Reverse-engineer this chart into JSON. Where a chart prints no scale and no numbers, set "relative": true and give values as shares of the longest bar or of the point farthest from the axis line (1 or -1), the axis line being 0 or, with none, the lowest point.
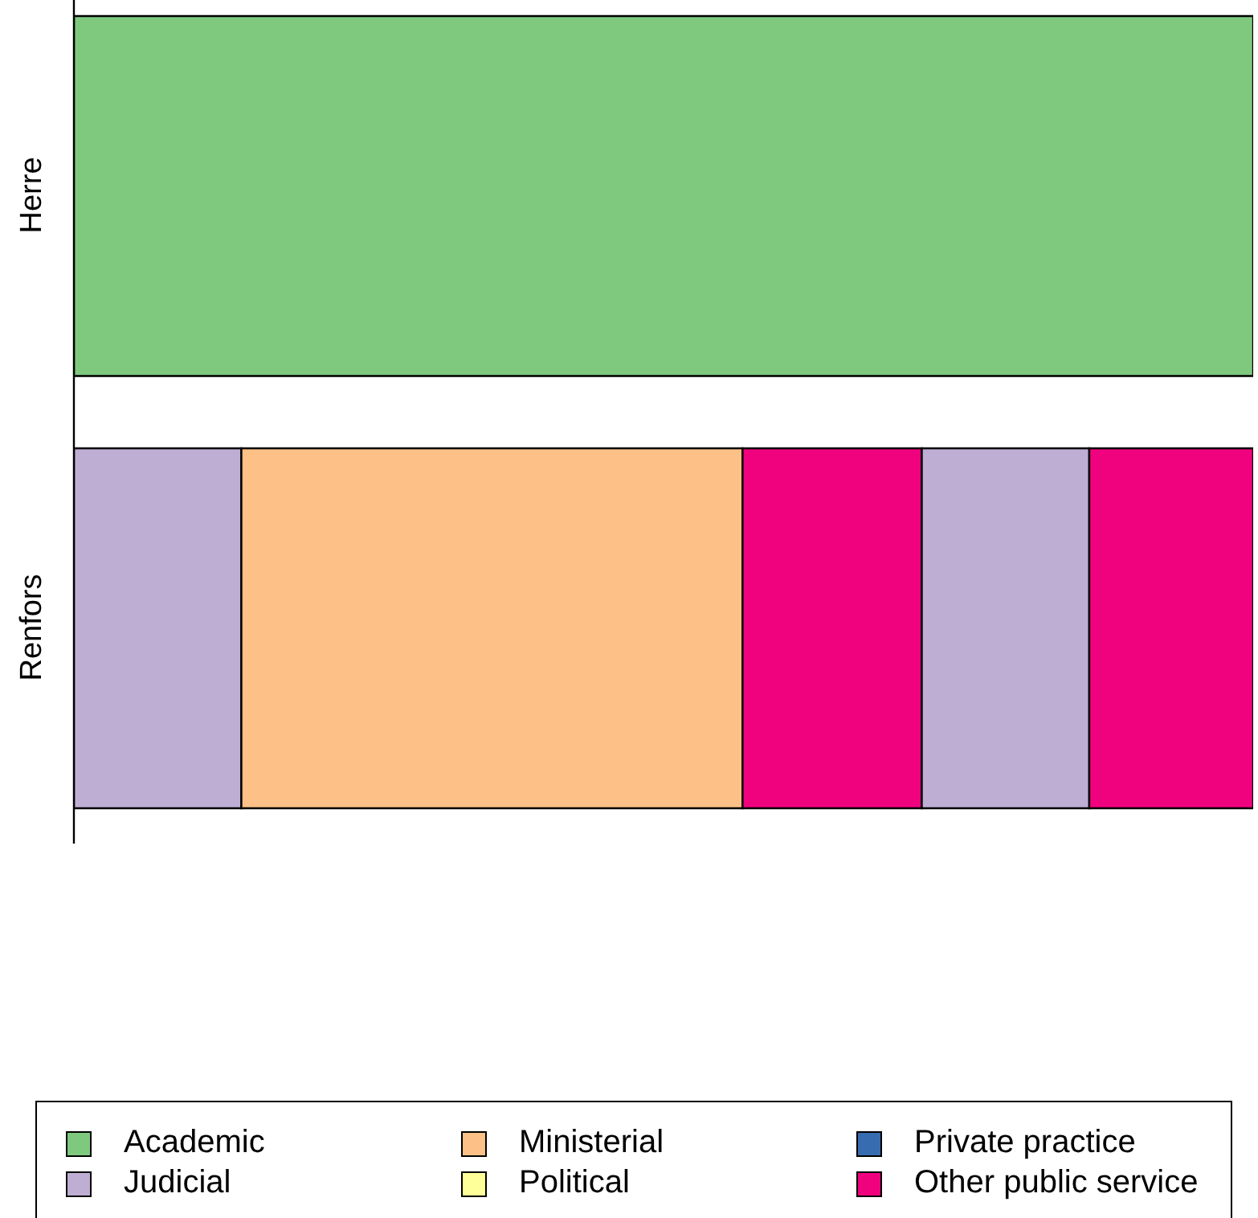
{
  "chart_data": {
    "type": "bar",
    "orientation": "horizontal",
    "stacked": true,
    "relative": true,
    "legend": "bottom",
    "categories": [
      "Herre",
      "Renfors"
    ],
    "series": [
      {
        "name": "Academic",
        "color": "#7fc97f",
        "values": [
          1,
          null
        ]
      },
      {
        "name": "Judicial",
        "color": "#beaed4",
        "values": [
          null,
          0.142
        ]
      },
      {
        "name": "Ministerial",
        "color": "#fdc086",
        "values": [
          null,
          0.425
        ]
      },
      {
        "name": "Political",
        "color": "#ffff99",
        "values": [
          null,
          null
        ]
      },
      {
        "name": "Private practice",
        "color": "#386cb0",
        "values": [
          null,
          null
        ]
      },
      {
        "name": "Other public service",
        "color": "#f0027f",
        "values": [
          null,
          0.152
        ]
      },
      {
        "color": "#beaed4",
        "values": [
          null,
          0.142
        ]
      },
      {
        "color": "#f0027f",
        "values": [
          null,
          0.139
        ]
      }
    ]
  }
}
